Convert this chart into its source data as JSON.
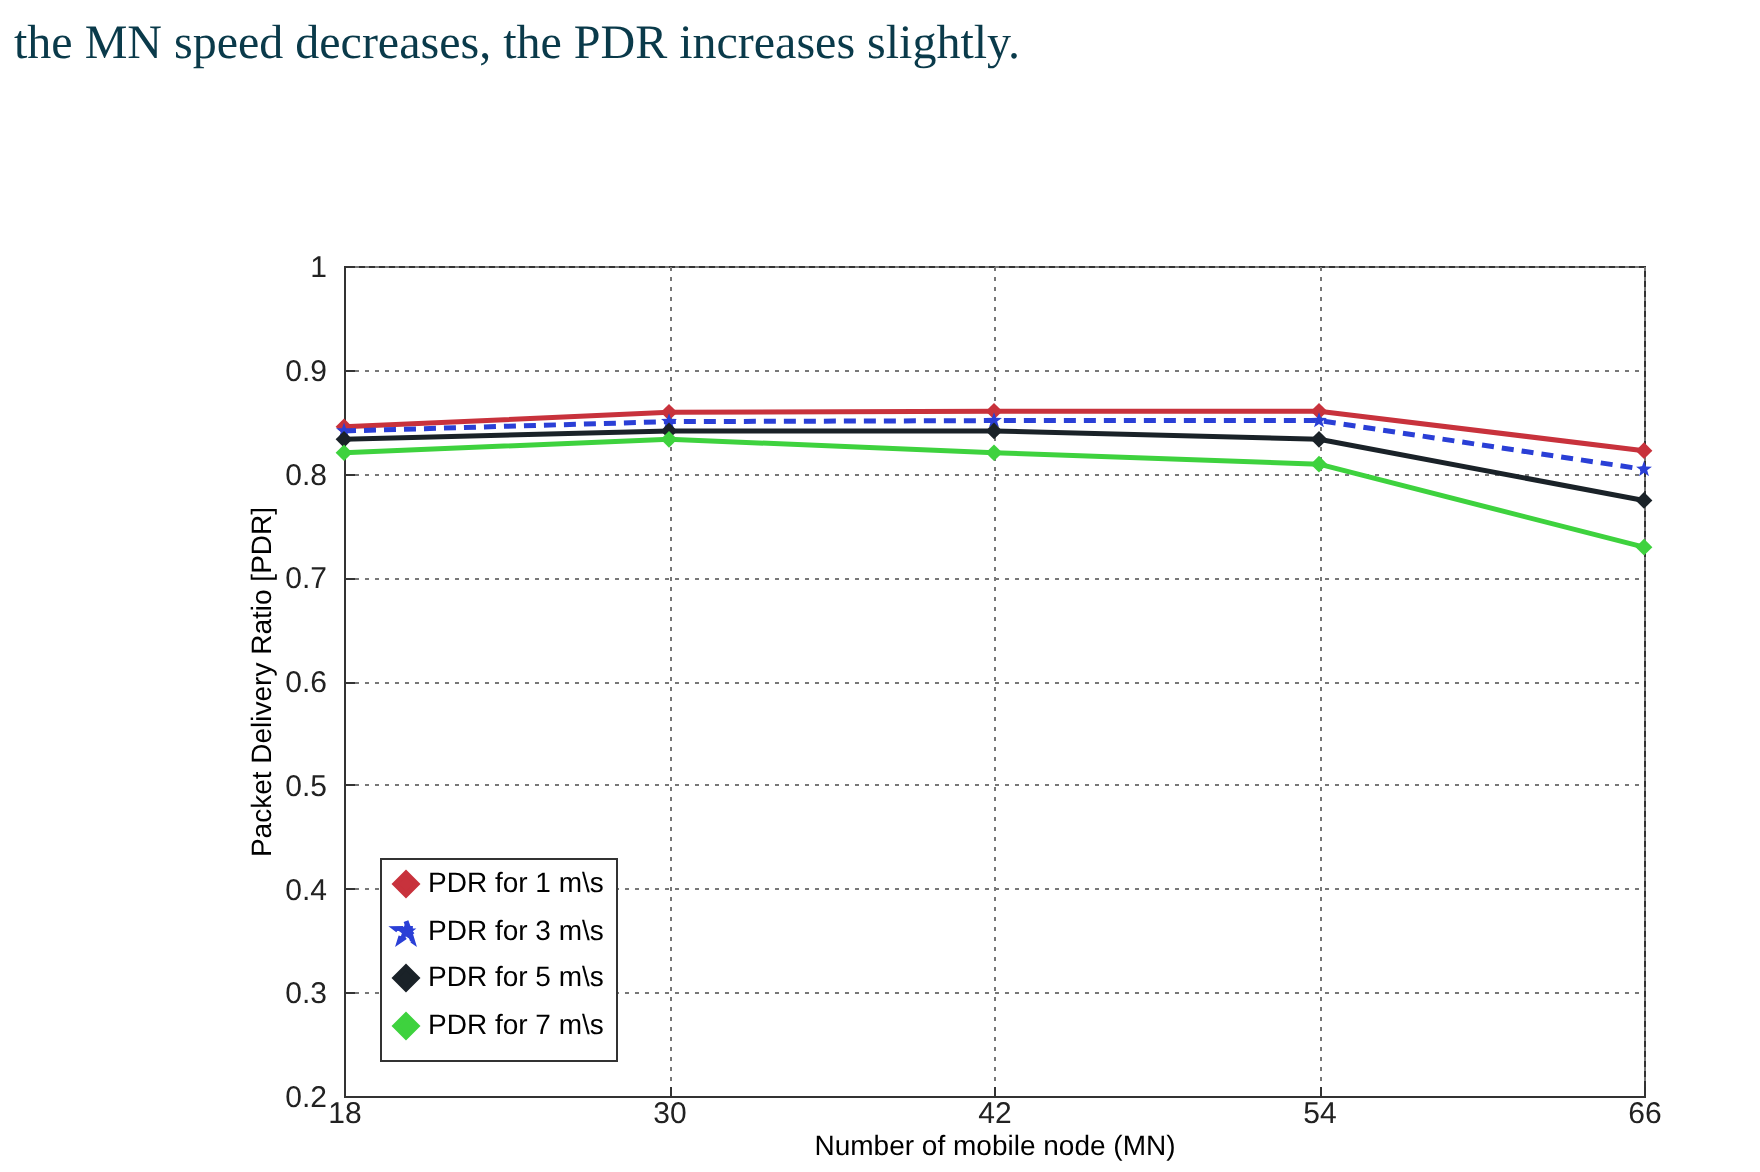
{
  "chart_data": {
    "type": "line",
    "annotations": [
      "the MN speed decreases, the PDR increases slightly."
    ],
    "xlabel": "Number of mobile node (MN)",
    "ylabel": "Packet Delivery Ratio [PDR]",
    "x": [
      18,
      30,
      42,
      54,
      66
    ],
    "xlim": [
      18,
      66
    ],
    "xticks": [
      18,
      30,
      42,
      54,
      66
    ],
    "ylim": [
      0.2,
      1
    ],
    "yticks": [
      0.2,
      0.3,
      0.4,
      0.5,
      0.6,
      0.7,
      0.8,
      0.9,
      1
    ],
    "grid": true,
    "legend": "bottom left",
    "series": [
      {
        "name": "PDR for 1 m\\s",
        "color": "#c8323c",
        "marker": "diamond",
        "line_style": "solid",
        "values": [
          0.845,
          0.859,
          0.86,
          0.86,
          0.822
        ]
      },
      {
        "name": "PDR for 3 m\\s",
        "color": "#2a3fd6",
        "marker": "star",
        "line_style": "dashed",
        "values": [
          0.841,
          0.85,
          0.851,
          0.851,
          0.804
        ]
      },
      {
        "name": "PDR for 5 m\\s",
        "color": "#1a2228",
        "marker": "diamond",
        "line_style": "solid",
        "values": [
          0.833,
          0.841,
          0.841,
          0.833,
          0.774
        ]
      },
      {
        "name": "PDR for 7 m\\s",
        "color": "#3ed23e",
        "marker": "diamond",
        "line_style": "solid",
        "values": [
          0.82,
          0.833,
          0.82,
          0.809,
          0.729
        ]
      }
    ]
  }
}
